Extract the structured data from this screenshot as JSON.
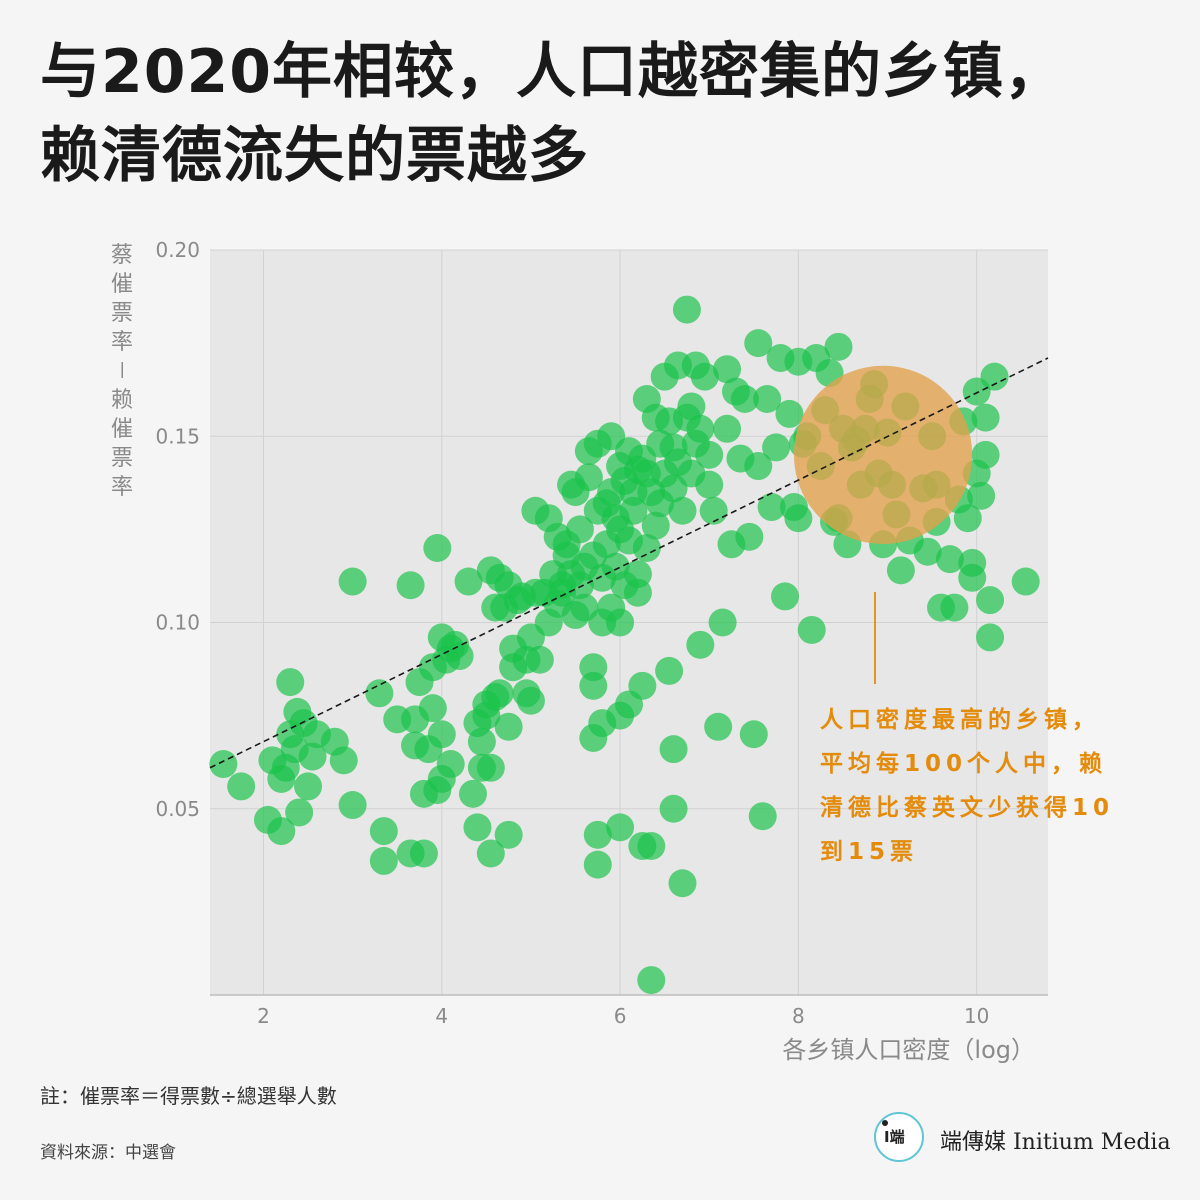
{
  "title": {
    "line1": "与2020年相较，人口越密集的乡镇，",
    "line2": "赖清德流失的票越多"
  },
  "chart_data": {
    "type": "scatter",
    "title": "",
    "xlabel": "各乡镇人口密度（log）",
    "ylabel": "蔡催票率－赖催票率",
    "xlim": [
      1.4,
      10.8
    ],
    "ylim": [
      0.0,
      0.2
    ],
    "x_ticks": [
      {
        "v": 2,
        "label": "2"
      },
      {
        "v": 4,
        "label": "4"
      },
      {
        "v": 6,
        "label": "6"
      },
      {
        "v": 8,
        "label": "8"
      },
      {
        "v": 10,
        "label": "10"
      }
    ],
    "y_ticks": [
      {
        "v": 0.05,
        "label": "0.05"
      },
      {
        "v": 0.1,
        "label": "0.10"
      },
      {
        "v": 0.15,
        "label": "0.15"
      },
      {
        "v": 0.2,
        "label": "0.20"
      }
    ],
    "grid": true,
    "trend_line": {
      "x": [
        1.4,
        10.8
      ],
      "y": [
        0.061,
        0.171
      ]
    },
    "highlight_circle": {
      "cx": 8.95,
      "cy": 0.145,
      "r_x": 1.0
    },
    "points": [
      [
        1.55,
        0.062
      ],
      [
        1.75,
        0.056
      ],
      [
        2.05,
        0.047
      ],
      [
        2.1,
        0.063
      ],
      [
        2.2,
        0.044
      ],
      [
        2.2,
        0.058
      ],
      [
        2.25,
        0.061
      ],
      [
        2.3,
        0.084
      ],
      [
        2.3,
        0.07
      ],
      [
        2.35,
        0.066
      ],
      [
        2.38,
        0.076
      ],
      [
        2.4,
        0.049
      ],
      [
        2.45,
        0.073
      ],
      [
        2.5,
        0.056
      ],
      [
        2.55,
        0.064
      ],
      [
        2.6,
        0.07
      ],
      [
        2.8,
        0.068
      ],
      [
        2.9,
        0.063
      ],
      [
        3.0,
        0.111
      ],
      [
        3.0,
        0.051
      ],
      [
        3.3,
        0.081
      ],
      [
        3.35,
        0.044
      ],
      [
        3.35,
        0.036
      ],
      [
        3.5,
        0.074
      ],
      [
        3.65,
        0.11
      ],
      [
        3.65,
        0.038
      ],
      [
        3.7,
        0.074
      ],
      [
        3.7,
        0.067
      ],
      [
        3.75,
        0.084
      ],
      [
        3.8,
        0.054
      ],
      [
        3.8,
        0.038
      ],
      [
        3.85,
        0.066
      ],
      [
        3.9,
        0.077
      ],
      [
        3.9,
        0.088
      ],
      [
        3.95,
        0.12
      ],
      [
        3.95,
        0.055
      ],
      [
        4.0,
        0.096
      ],
      [
        4.0,
        0.07
      ],
      [
        4.0,
        0.058
      ],
      [
        4.05,
        0.09
      ],
      [
        4.1,
        0.062
      ],
      [
        4.1,
        0.093
      ],
      [
        4.15,
        0.094
      ],
      [
        4.2,
        0.091
      ],
      [
        4.3,
        0.111
      ],
      [
        4.35,
        0.054
      ],
      [
        4.4,
        0.073
      ],
      [
        4.4,
        0.045
      ],
      [
        4.45,
        0.068
      ],
      [
        4.45,
        0.061
      ],
      [
        4.5,
        0.075
      ],
      [
        4.5,
        0.078
      ],
      [
        4.55,
        0.114
      ],
      [
        4.55,
        0.061
      ],
      [
        4.55,
        0.038
      ],
      [
        4.6,
        0.104
      ],
      [
        4.6,
        0.08
      ],
      [
        4.65,
        0.081
      ],
      [
        4.65,
        0.112
      ],
      [
        4.7,
        0.104
      ],
      [
        4.75,
        0.11
      ],
      [
        4.75,
        0.072
      ],
      [
        4.75,
        0.043
      ],
      [
        4.8,
        0.088
      ],
      [
        4.8,
        0.093
      ],
      [
        4.85,
        0.106
      ],
      [
        4.9,
        0.107
      ],
      [
        4.95,
        0.09
      ],
      [
        4.95,
        0.081
      ],
      [
        5.0,
        0.096
      ],
      [
        5.0,
        0.079
      ],
      [
        5.05,
        0.108
      ],
      [
        5.05,
        0.13
      ],
      [
        5.1,
        0.09
      ],
      [
        5.15,
        0.108
      ],
      [
        5.2,
        0.128
      ],
      [
        5.2,
        0.1
      ],
      [
        5.25,
        0.113
      ],
      [
        5.3,
        0.105
      ],
      [
        5.3,
        0.123
      ],
      [
        5.35,
        0.11
      ],
      [
        5.35,
        0.108
      ],
      [
        5.4,
        0.118
      ],
      [
        5.4,
        0.121
      ],
      [
        5.45,
        0.137
      ],
      [
        5.45,
        0.113
      ],
      [
        5.5,
        0.135
      ],
      [
        5.5,
        0.102
      ],
      [
        5.55,
        0.11
      ],
      [
        5.55,
        0.125
      ],
      [
        5.6,
        0.104
      ],
      [
        5.6,
        0.115
      ],
      [
        5.65,
        0.139
      ],
      [
        5.65,
        0.146
      ],
      [
        5.7,
        0.088
      ],
      [
        5.7,
        0.083
      ],
      [
        5.7,
        0.069
      ],
      [
        5.7,
        0.118
      ],
      [
        5.75,
        0.148
      ],
      [
        5.75,
        0.13
      ],
      [
        5.75,
        0.043
      ],
      [
        5.75,
        0.035
      ],
      [
        5.8,
        0.1
      ],
      [
        5.8,
        0.112
      ],
      [
        5.8,
        0.073
      ],
      [
        5.85,
        0.132
      ],
      [
        5.85,
        0.121
      ],
      [
        5.9,
        0.15
      ],
      [
        5.9,
        0.135
      ],
      [
        5.9,
        0.104
      ],
      [
        5.95,
        0.128
      ],
      [
        5.95,
        0.115
      ],
      [
        6.0,
        0.142
      ],
      [
        6.0,
        0.125
      ],
      [
        6.0,
        0.1
      ],
      [
        6.0,
        0.075
      ],
      [
        6.0,
        0.045
      ],
      [
        6.05,
        0.138
      ],
      [
        6.05,
        0.11
      ],
      [
        6.1,
        0.146
      ],
      [
        6.1,
        0.122
      ],
      [
        6.1,
        0.078
      ],
      [
        6.15,
        0.135
      ],
      [
        6.15,
        0.13
      ],
      [
        6.2,
        0.141
      ],
      [
        6.2,
        0.113
      ],
      [
        6.2,
        0.108
      ],
      [
        6.25,
        0.144
      ],
      [
        6.25,
        0.083
      ],
      [
        6.25,
        0.04
      ],
      [
        6.3,
        0.14
      ],
      [
        6.3,
        0.12
      ],
      [
        6.3,
        0.16
      ],
      [
        6.35,
        0.135
      ],
      [
        6.35,
        0.04
      ],
      [
        6.35,
        0.004
      ],
      [
        6.4,
        0.155
      ],
      [
        6.4,
        0.126
      ],
      [
        6.45,
        0.148
      ],
      [
        6.45,
        0.132
      ],
      [
        6.5,
        0.166
      ],
      [
        6.5,
        0.14
      ],
      [
        6.55,
        0.154
      ],
      [
        6.55,
        0.087
      ],
      [
        6.6,
        0.147
      ],
      [
        6.6,
        0.136
      ],
      [
        6.6,
        0.066
      ],
      [
        6.6,
        0.05
      ],
      [
        6.65,
        0.169
      ],
      [
        6.65,
        0.143
      ],
      [
        6.7,
        0.13
      ],
      [
        6.7,
        0.03
      ],
      [
        6.75,
        0.184
      ],
      [
        6.75,
        0.155
      ],
      [
        6.8,
        0.158
      ],
      [
        6.8,
        0.14
      ],
      [
        6.85,
        0.169
      ],
      [
        6.85,
        0.148
      ],
      [
        6.9,
        0.094
      ],
      [
        6.9,
        0.152
      ],
      [
        6.95,
        0.166
      ],
      [
        7.0,
        0.137
      ],
      [
        7.0,
        0.145
      ],
      [
        7.05,
        0.13
      ],
      [
        7.1,
        0.072
      ],
      [
        7.15,
        0.1
      ],
      [
        7.2,
        0.168
      ],
      [
        7.2,
        0.152
      ],
      [
        7.25,
        0.121
      ],
      [
        7.3,
        0.162
      ],
      [
        7.35,
        0.144
      ],
      [
        7.4,
        0.16
      ],
      [
        7.45,
        0.123
      ],
      [
        7.5,
        0.07
      ],
      [
        7.55,
        0.175
      ],
      [
        7.55,
        0.142
      ],
      [
        7.6,
        0.048
      ],
      [
        7.65,
        0.16
      ],
      [
        7.7,
        0.131
      ],
      [
        7.75,
        0.147
      ],
      [
        7.8,
        0.171
      ],
      [
        7.85,
        0.107
      ],
      [
        7.9,
        0.156
      ],
      [
        7.95,
        0.131
      ],
      [
        8.0,
        0.17
      ],
      [
        8.0,
        0.128
      ],
      [
        8.05,
        0.148
      ],
      [
        8.1,
        0.15
      ],
      [
        8.15,
        0.098
      ],
      [
        8.2,
        0.171
      ],
      [
        8.25,
        0.142
      ],
      [
        8.3,
        0.157
      ],
      [
        8.35,
        0.167
      ],
      [
        8.4,
        0.127
      ],
      [
        8.45,
        0.174
      ],
      [
        8.45,
        0.128
      ],
      [
        8.5,
        0.152
      ],
      [
        8.55,
        0.121
      ],
      [
        8.6,
        0.147
      ],
      [
        8.65,
        0.149
      ],
      [
        8.7,
        0.137
      ],
      [
        8.75,
        0.152
      ],
      [
        8.8,
        0.16
      ],
      [
        8.85,
        0.164
      ],
      [
        8.9,
        0.14
      ],
      [
        8.95,
        0.121
      ],
      [
        9.0,
        0.151
      ],
      [
        9.05,
        0.137
      ],
      [
        9.1,
        0.129
      ],
      [
        9.15,
        0.114
      ],
      [
        9.2,
        0.158
      ],
      [
        9.25,
        0.122
      ],
      [
        9.4,
        0.136
      ],
      [
        9.45,
        0.119
      ],
      [
        9.5,
        0.15
      ],
      [
        9.55,
        0.137
      ],
      [
        9.55,
        0.127
      ],
      [
        9.6,
        0.104
      ],
      [
        9.7,
        0.117
      ],
      [
        9.75,
        0.104
      ],
      [
        9.8,
        0.133
      ],
      [
        9.85,
        0.154
      ],
      [
        9.9,
        0.128
      ],
      [
        9.95,
        0.116
      ],
      [
        9.95,
        0.112
      ],
      [
        10.0,
        0.14
      ],
      [
        10.0,
        0.162
      ],
      [
        10.05,
        0.134
      ],
      [
        10.1,
        0.155
      ],
      [
        10.1,
        0.145
      ],
      [
        10.15,
        0.106
      ],
      [
        10.15,
        0.096
      ],
      [
        10.2,
        0.166
      ],
      [
        10.55,
        0.111
      ]
    ]
  },
  "annotation": {
    "text": "人口密度最高的乡镇，平均每100个人中，赖清德比蔡英文少获得10到15票"
  },
  "footer": {
    "note": "註：催票率＝得票數÷總選舉人數",
    "source": "資料來源：中選會"
  },
  "brand": {
    "glyph": "I端",
    "name": "端傳媒 Initium Media"
  },
  "colors": {
    "point": "#19c24a",
    "highlight": "#e2a24a",
    "annotation": "#e48b0c",
    "plot_bg": "#e7e7e7"
  }
}
